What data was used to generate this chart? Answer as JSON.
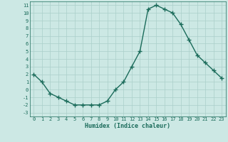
{
  "x": [
    0,
    1,
    2,
    3,
    4,
    5,
    6,
    7,
    8,
    9,
    10,
    11,
    12,
    13,
    14,
    15,
    16,
    17,
    18,
    19,
    20,
    21,
    22,
    23
  ],
  "y": [
    2,
    1,
    -0.5,
    -1,
    -1.5,
    -2,
    -2,
    -2,
    -2,
    -1.5,
    0,
    1,
    3,
    5,
    10.5,
    11,
    10.5,
    10,
    8.5,
    6.5,
    4.5,
    3.5,
    2.5,
    1.5
  ],
  "line_color": "#1a6b5a",
  "bg_color": "#cce8e4",
  "grid_color": "#aacfca",
  "xlabel": "Humidex (Indice chaleur)",
  "ylim": [
    -3.5,
    11.5
  ],
  "xlim": [
    -0.5,
    23.5
  ],
  "yticks": [
    -3,
    -2,
    -1,
    0,
    1,
    2,
    3,
    4,
    5,
    6,
    7,
    8,
    9,
    10,
    11
  ],
  "xticks": [
    0,
    1,
    2,
    3,
    4,
    5,
    6,
    7,
    8,
    9,
    10,
    11,
    12,
    13,
    14,
    15,
    16,
    17,
    18,
    19,
    20,
    21,
    22,
    23
  ],
  "marker": "+",
  "markersize": 4,
  "linewidth": 1.0
}
